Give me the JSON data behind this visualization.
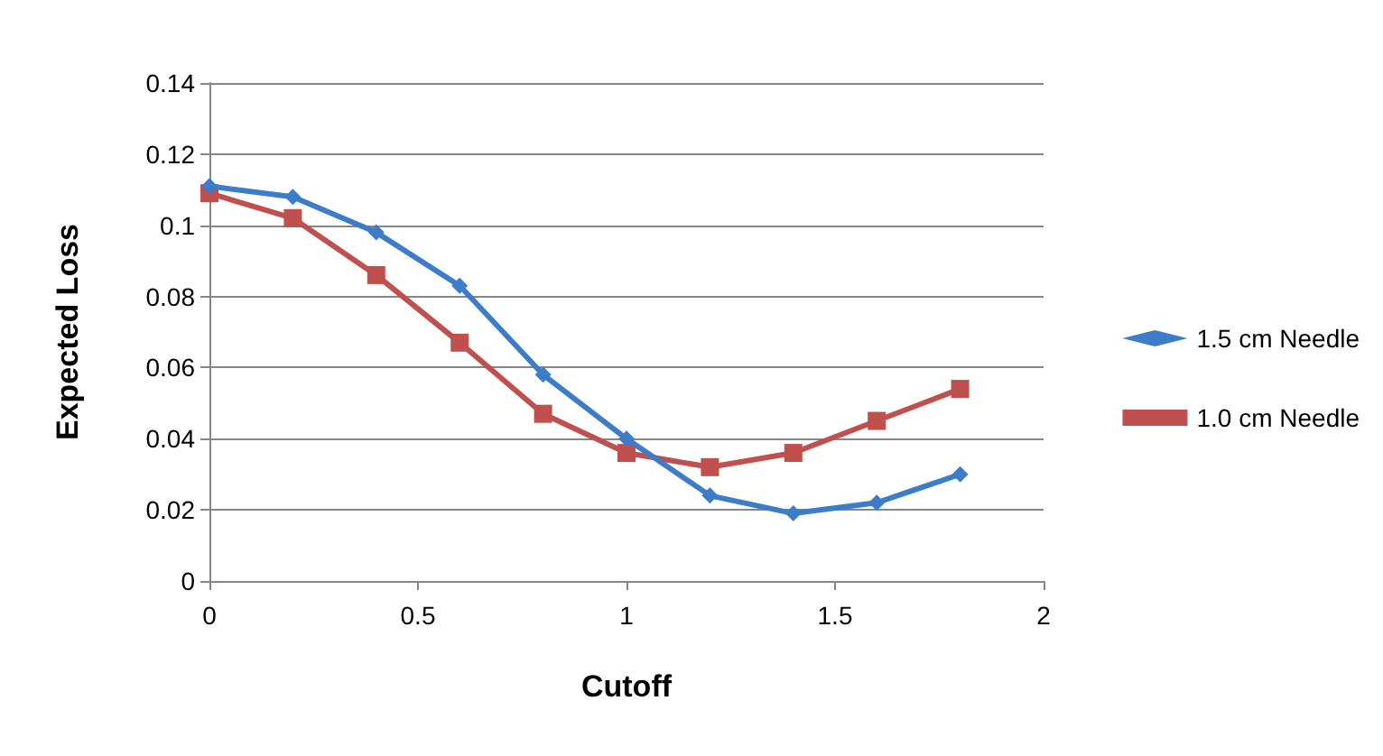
{
  "chart_data": {
    "type": "line",
    "xlabel": "Cutoff",
    "ylabel": "Expected Loss",
    "x": [
      0,
      0.2,
      0.4,
      0.6,
      0.8,
      1.0,
      1.2,
      1.4,
      1.6,
      1.8
    ],
    "series": [
      {
        "name": "1.5 cm Needle",
        "color": "#3d7cc9",
        "marker": "diamond",
        "values": [
          0.111,
          0.108,
          0.098,
          0.083,
          0.058,
          0.04,
          0.024,
          0.019,
          0.022,
          0.03
        ]
      },
      {
        "name": "1.0 cm Needle",
        "color": "#c0504d",
        "marker": "square",
        "values": [
          0.109,
          0.102,
          0.086,
          0.067,
          0.047,
          0.036,
          0.032,
          0.036,
          0.045,
          0.054
        ]
      }
    ],
    "xlim": [
      0,
      2
    ],
    "xticks": [
      0,
      0.5,
      1,
      1.5,
      2
    ],
    "ylim": [
      0,
      0.14
    ],
    "yticks": [
      0,
      0.02,
      0.04,
      0.06,
      0.08,
      0.1,
      0.12,
      0.14
    ],
    "grid": "y",
    "legend": "right",
    "line_style": "solid"
  }
}
